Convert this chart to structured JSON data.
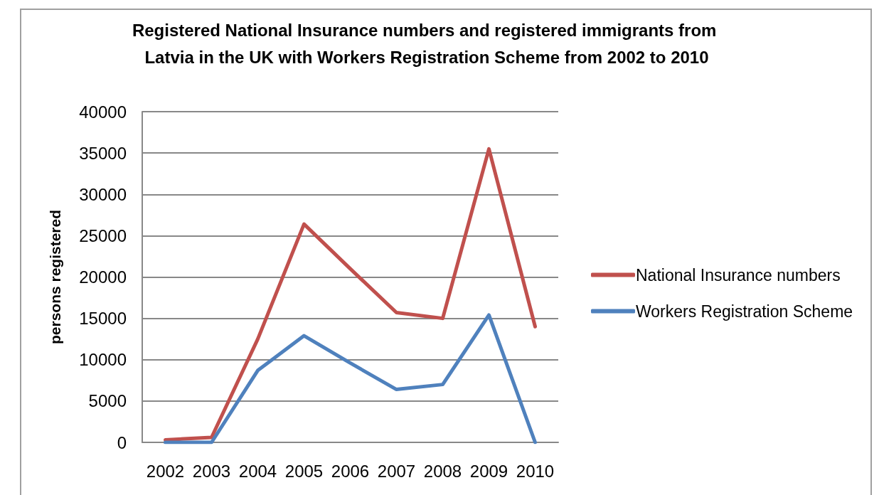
{
  "chart_data": {
    "type": "line",
    "title": "Registered National Insurance numbers and registered immigrants from Latvia in the UK with Workers Registration Scheme from 2002 to 2010",
    "ylabel": "persons registered",
    "categories": [
      "2002",
      "2003",
      "2004",
      "2005",
      "2006",
      "2007",
      "2008",
      "2009",
      "2010"
    ],
    "series": [
      {
        "name": "National Insurance numbers",
        "color": "#c0504d",
        "values": [
          300,
          600,
          12500,
          26400,
          21000,
          15700,
          15000,
          35500,
          14000
        ]
      },
      {
        "name": "Workers Registration Scheme",
        "color": "#4f81bd",
        "values": [
          0,
          0,
          8700,
          12900,
          9600,
          6400,
          7000,
          15400,
          0
        ]
      }
    ],
    "ylim": [
      0,
      40000
    ],
    "yticks": [
      0,
      5000,
      10000,
      15000,
      20000,
      25000,
      30000,
      35000,
      40000
    ],
    "grid": "y",
    "legend": "right",
    "marker": "none",
    "line_style": "solid"
  }
}
